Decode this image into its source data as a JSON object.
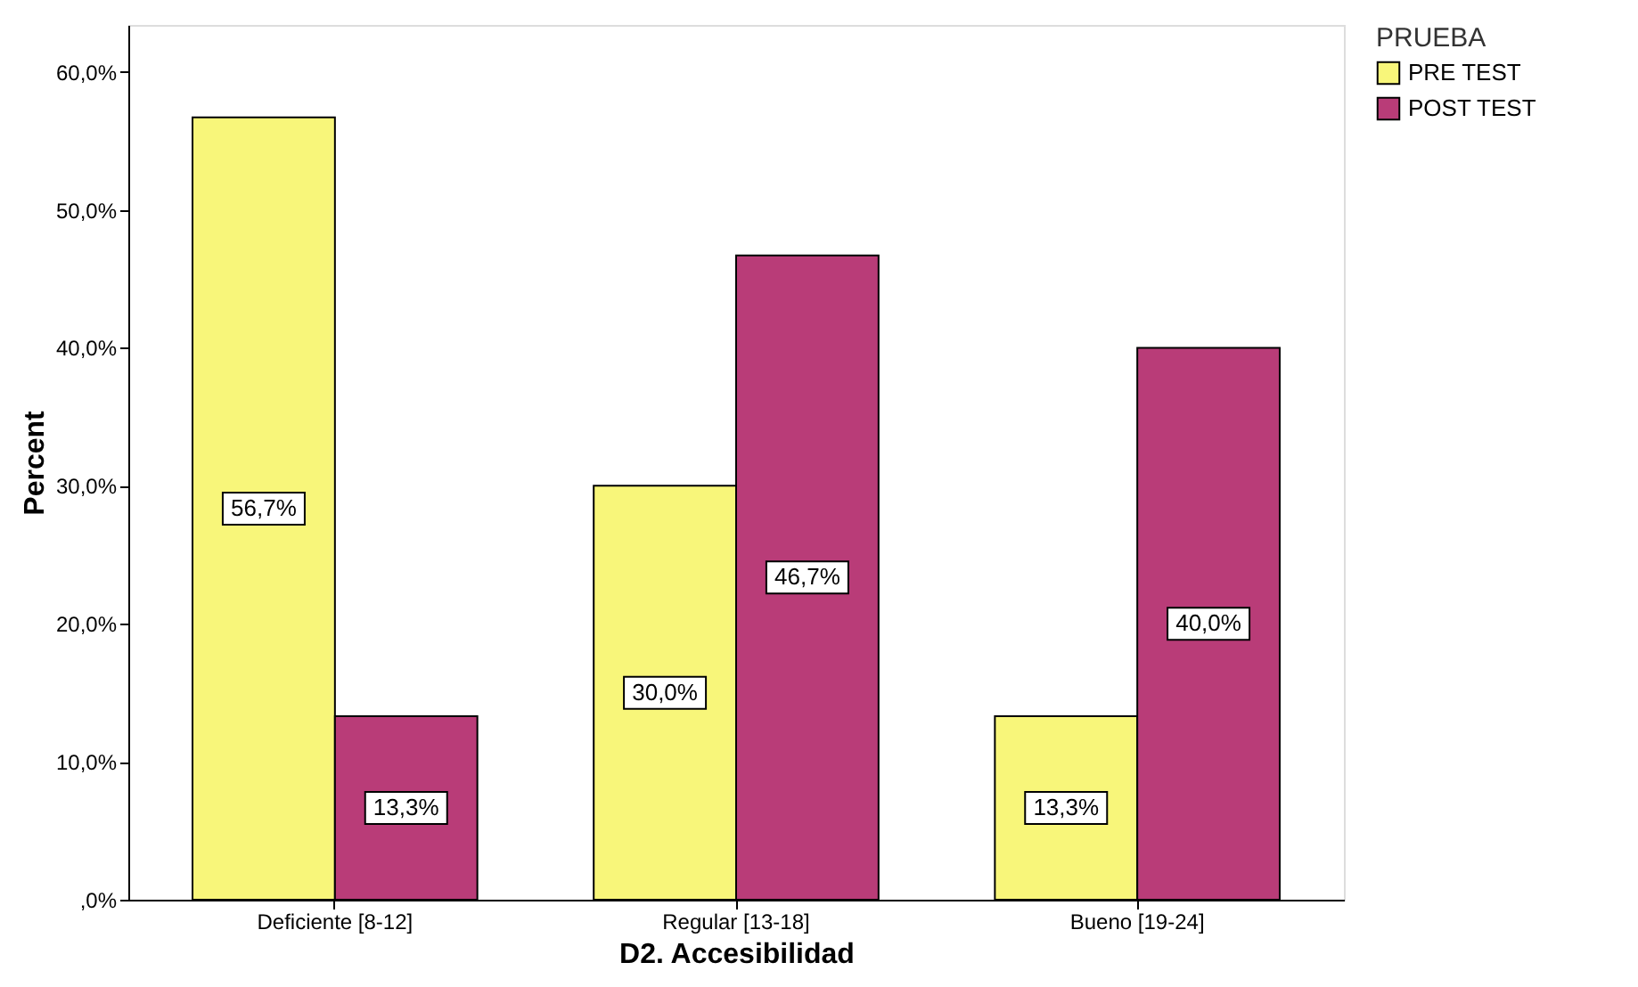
{
  "chart_data": {
    "type": "bar",
    "xlabel": "D2. Accesibilidad",
    "ylabel": "Percent",
    "legend_title": "PRUEBA",
    "categories": [
      "Deficiente [8-12]",
      "Regular [13-18]",
      "Bueno [19-24]"
    ],
    "series": [
      {
        "name": "PRE TEST",
        "color": "#f8f67a",
        "values": [
          56.7,
          30.0,
          13.3
        ],
        "value_labels": [
          "56,7%",
          "30,0%",
          "13,3%"
        ]
      },
      {
        "name": "POST TEST",
        "color": "#b93c78",
        "values": [
          13.3,
          46.7,
          40.0
        ],
        "value_labels": [
          "13,3%",
          "46,7%",
          "40,0%"
        ]
      }
    ],
    "ylim": [
      0,
      63.4
    ],
    "yticks": [
      {
        "value": 0,
        "label": ",0%"
      },
      {
        "value": 10,
        "label": "10,0%"
      },
      {
        "value": 20,
        "label": "20,0%"
      },
      {
        "value": 30,
        "label": "30,0%"
      },
      {
        "value": 40,
        "label": "40,0%"
      },
      {
        "value": 50,
        "label": "50,0%"
      },
      {
        "value": 60,
        "label": "60,0%"
      }
    ],
    "grid": false,
    "legend": "top right"
  }
}
